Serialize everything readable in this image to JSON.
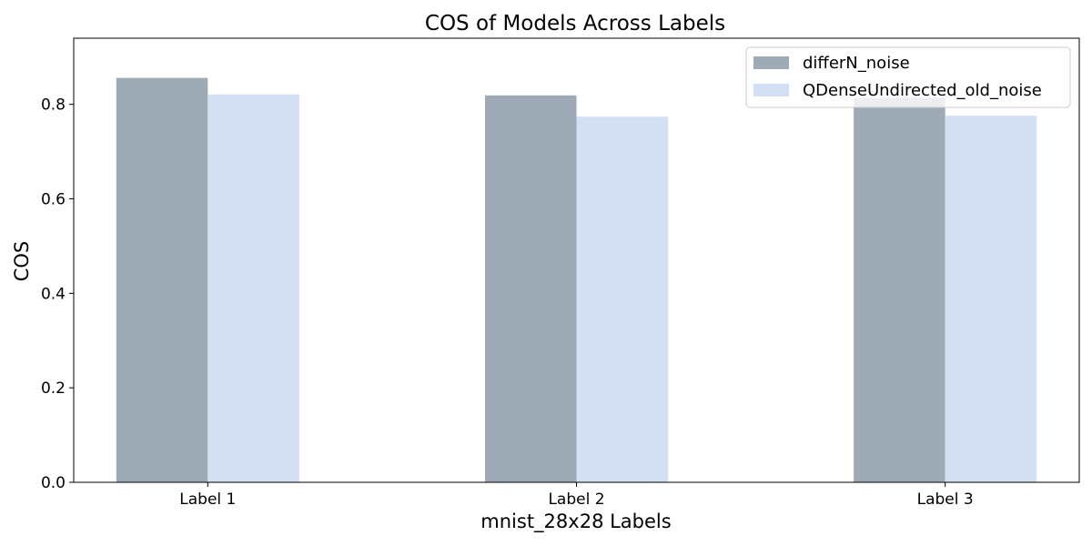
{
  "chart_data": {
    "type": "bar",
    "title": "COS of Models Across Labels",
    "xlabel": "mnist_28x28 Labels",
    "ylabel": "COS",
    "categories": [
      "Label 1",
      "Label 2",
      "Label 3"
    ],
    "series": [
      {
        "name": "differN_noise",
        "values": [
          0.856,
          0.819,
          0.814
        ],
        "color": "#9faab7"
      },
      {
        "name": "QDenseUndirected_old_noise",
        "values": [
          0.821,
          0.774,
          0.776
        ],
        "color": "#d3e0f3"
      }
    ],
    "ylim": [
      0,
      0.94
    ],
    "yticks": [
      "0.0",
      "0.2",
      "0.4",
      "0.6",
      "0.8"
    ],
    "grid": false,
    "legend": "top-right"
  }
}
